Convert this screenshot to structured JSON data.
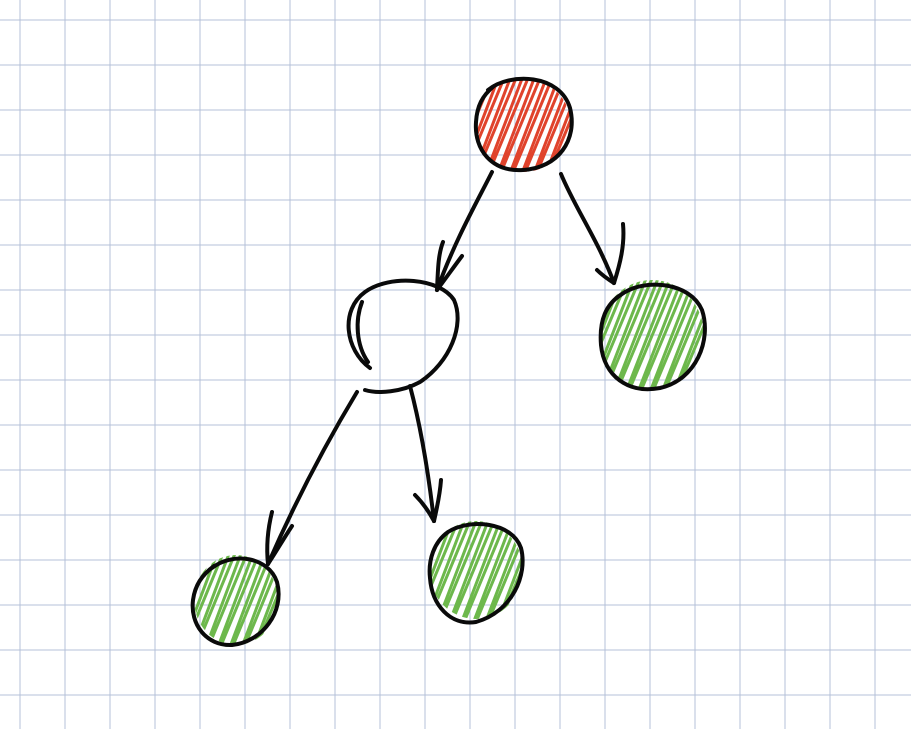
{
  "diagram": {
    "type": "tree",
    "background": "grid-paper",
    "colors": {
      "grid_line": "#b4c0d8",
      "outline": "#0a0a0a",
      "root_fill": "#e0432c",
      "leaf_fill": "#6db84c",
      "empty_fill": "#ffffff"
    },
    "nodes": [
      {
        "id": "root",
        "fill": "red"
      },
      {
        "id": "left-child",
        "fill": "none"
      },
      {
        "id": "right-child",
        "fill": "green"
      },
      {
        "id": "left-left-grandchild",
        "fill": "green"
      },
      {
        "id": "left-right-grandchild",
        "fill": "green"
      }
    ],
    "edges": [
      {
        "from": "root",
        "to": "left-child"
      },
      {
        "from": "root",
        "to": "right-child"
      },
      {
        "from": "left-child",
        "to": "left-left-grandchild"
      },
      {
        "from": "left-child",
        "to": "left-right-grandchild"
      }
    ]
  }
}
